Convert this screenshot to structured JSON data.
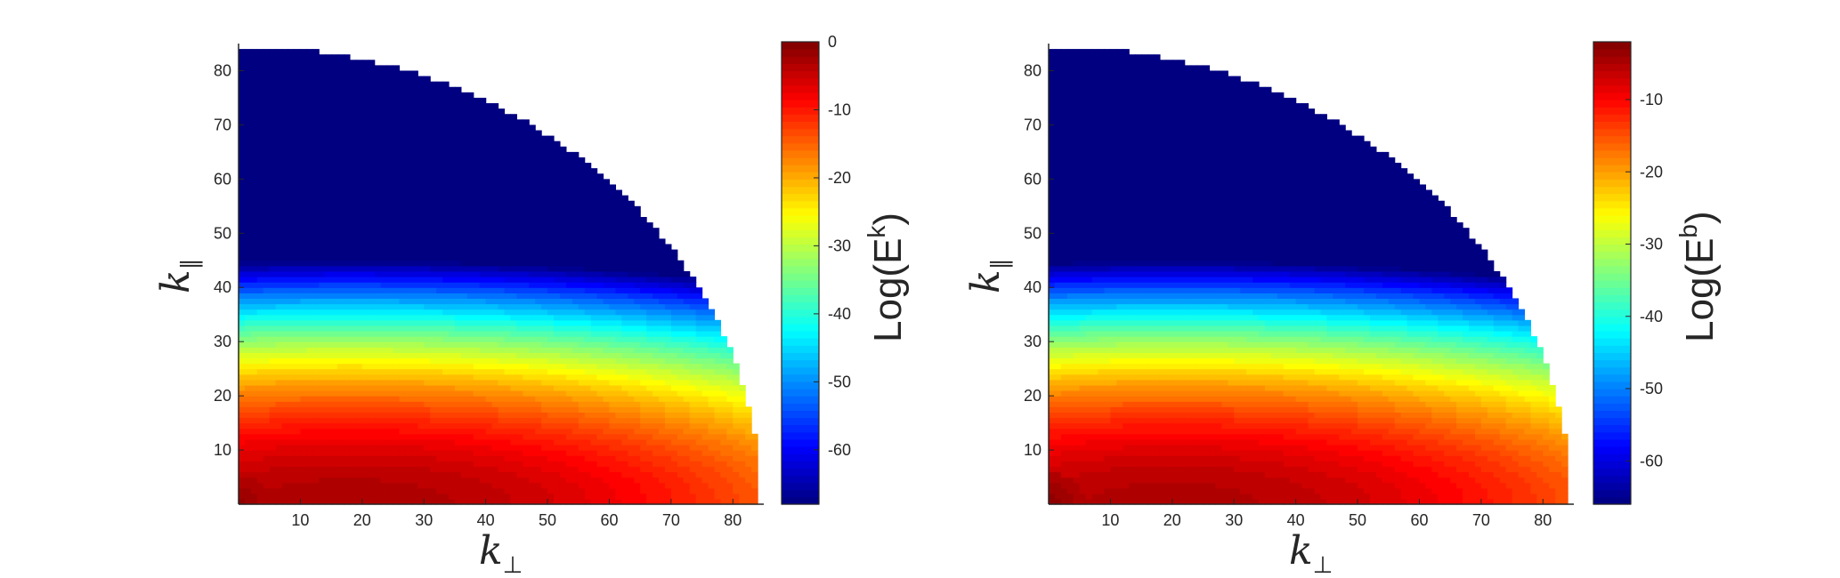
{
  "chart_data": [
    {
      "type": "heatmap",
      "title": "",
      "xlabel": "k",
      "xlabel_sub": "⊥",
      "ylabel": "k",
      "ylabel_sub": "∥",
      "xlim": [
        0,
        85
      ],
      "ylim": [
        0,
        85
      ],
      "xticks": [
        10,
        20,
        30,
        40,
        50,
        60,
        70,
        80
      ],
      "yticks": [
        10,
        20,
        30,
        40,
        50,
        60,
        70,
        80
      ],
      "domain_radius": 84,
      "colormap": "jet",
      "colorbar": {
        "label": "Log(E",
        "label_sup": "k",
        "label_close": ")",
        "range": [
          -68,
          0
        ],
        "ticks": [
          0,
          -10,
          -20,
          -30,
          -40,
          -50,
          -60
        ]
      },
      "field": {
        "peak_value": -3,
        "peak_kperp": 18,
        "peak_kpar": 0,
        "kperp_scale": 120,
        "kpar_scale": 46,
        "corner_value": -1
      }
    },
    {
      "type": "heatmap",
      "title": "",
      "xlabel": "k",
      "xlabel_sub": "⊥",
      "ylabel": "k",
      "ylabel_sub": "∥",
      "xlim": [
        0,
        85
      ],
      "ylim": [
        0,
        85
      ],
      "xticks": [
        10,
        20,
        30,
        40,
        50,
        60,
        70,
        80
      ],
      "yticks": [
        10,
        20,
        30,
        40,
        50,
        60,
        70,
        80
      ],
      "domain_radius": 84,
      "colormap": "jet",
      "colorbar": {
        "label": "Log(E",
        "label_sup": "b",
        "label_close": ")",
        "range": [
          -66,
          -2
        ],
        "ticks": [
          -10,
          -20,
          -30,
          -40,
          -50,
          -60
        ]
      },
      "field": {
        "peak_value": -5,
        "peak_kperp": 20,
        "peak_kpar": 0,
        "kperp_scale": 120,
        "kpar_scale": 46,
        "corner_value": -2.5
      }
    }
  ]
}
